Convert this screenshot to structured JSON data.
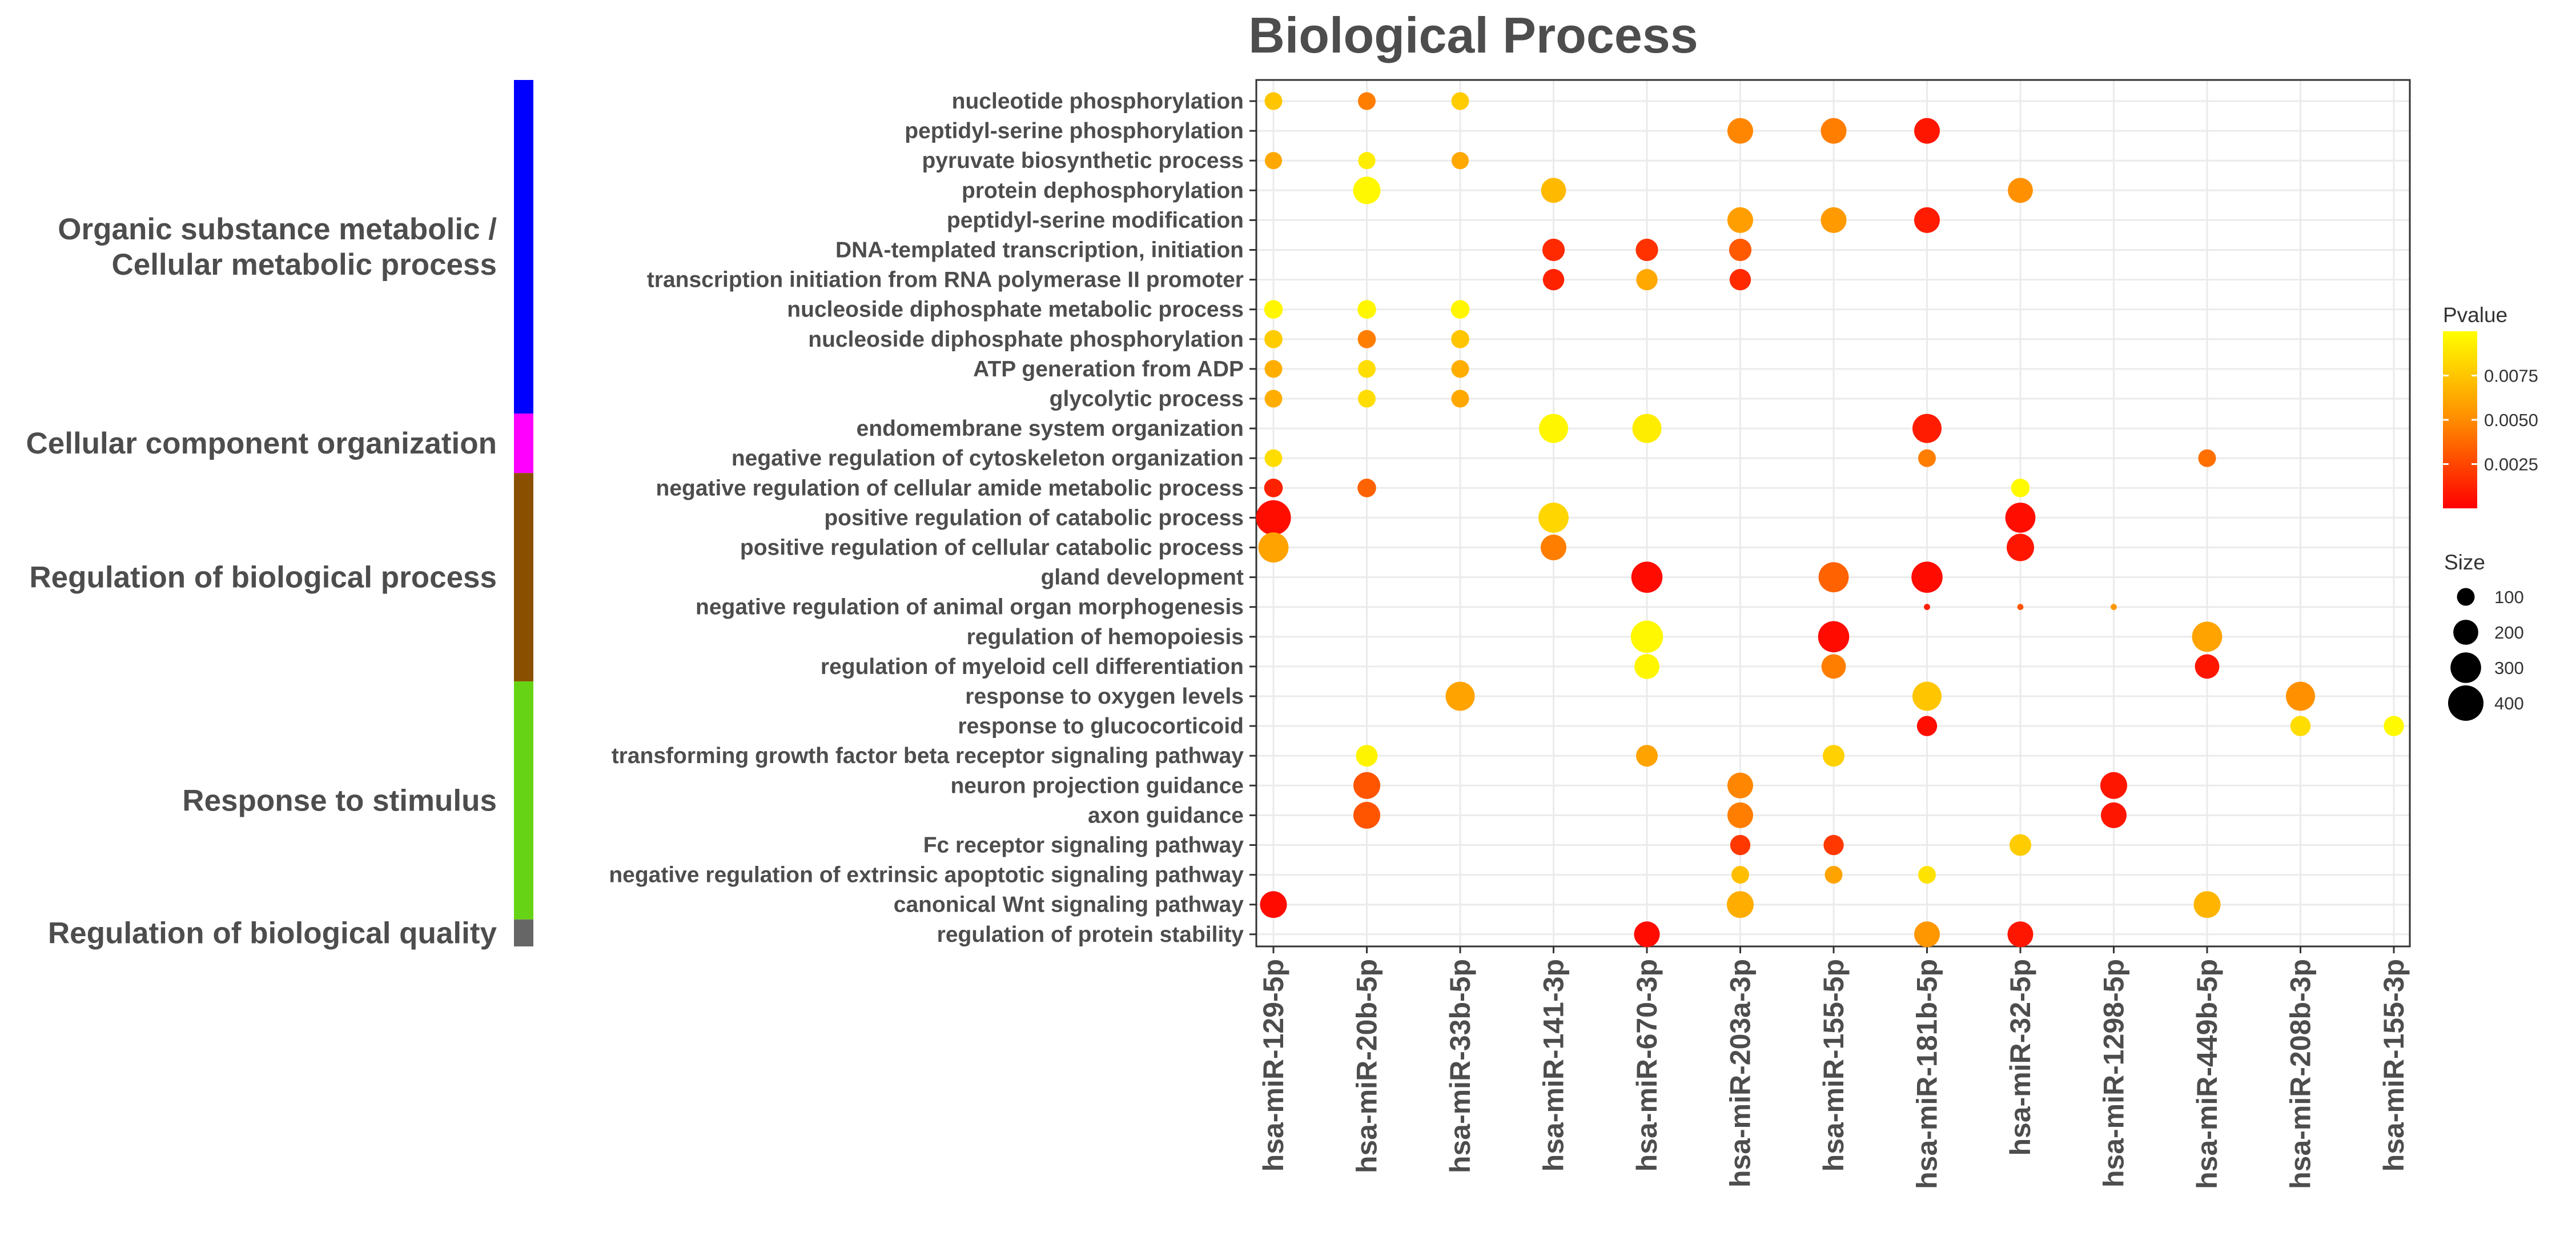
{
  "chart_data": {
    "type": "scatter",
    "subtype": "dot-plot",
    "title": "Biological Process",
    "xlabel": "",
    "ylabel": "",
    "x_categories": [
      "hsa-miR-129-5p",
      "hsa-miR-20b-5p",
      "hsa-miR-33b-5p",
      "hsa-miR-141-3p",
      "hsa-miR-670-3p",
      "hsa-miR-203a-3p",
      "hsa-miR-155-5p",
      "hsa-miR-181b-5p",
      "hsa-miR-32-5p",
      "hsa-miR-1298-5p",
      "hsa-miR-449b-5p",
      "hsa-miR-208b-3p",
      "hsa-miR-155-3p"
    ],
    "y_categories": [
      "nucleotide phosphorylation",
      "peptidyl-serine phosphorylation",
      "pyruvate biosynthetic process",
      "protein dephosphorylation",
      "peptidyl-serine modification",
      "DNA-templated transcription, initiation",
      "transcription initiation from RNA polymerase II promoter",
      "nucleoside diphosphate metabolic process",
      "nucleoside diphosphate phosphorylation",
      "ATP generation from ADP",
      "glycolytic process",
      "endomembrane system organization",
      "negative regulation of cytoskeleton organization",
      "negative regulation of cellular amide metabolic process",
      "positive regulation of catabolic process",
      "positive regulation of cellular catabolic process",
      "gland development",
      "negative regulation of animal organ morphogenesis",
      "regulation of hemopoiesis",
      "regulation of myeloid cell differentiation",
      "response to oxygen levels",
      "response to glucocorticoid",
      "transforming growth factor beta receptor signaling pathway",
      "neuron projection guidance",
      "axon guidance",
      "Fc receptor signaling pathway",
      "negative regulation of extrinsic apoptotic signaling pathway",
      "canonical Wnt signaling pathway",
      "regulation of protein stability"
    ],
    "points": [
      {
        "y": "nucleotide phosphorylation",
        "x": "hsa-miR-129-5p",
        "size": 100,
        "pvalue": 0.0075
      },
      {
        "y": "nucleotide phosphorylation",
        "x": "hsa-miR-20b-5p",
        "size": 100,
        "pvalue": 0.0045
      },
      {
        "y": "nucleotide phosphorylation",
        "x": "hsa-miR-33b-5p",
        "size": 100,
        "pvalue": 0.0078
      },
      {
        "y": "peptidyl-serine phosphorylation",
        "x": "hsa-miR-203a-3p",
        "size": 210,
        "pvalue": 0.0048
      },
      {
        "y": "peptidyl-serine phosphorylation",
        "x": "hsa-miR-155-5p",
        "size": 210,
        "pvalue": 0.0045
      },
      {
        "y": "peptidyl-serine phosphorylation",
        "x": "hsa-miR-181b-5p",
        "size": 210,
        "pvalue": 0.0008
      },
      {
        "y": "pyruvate biosynthetic process",
        "x": "hsa-miR-129-5p",
        "size": 95,
        "pvalue": 0.0062
      },
      {
        "y": "pyruvate biosynthetic process",
        "x": "hsa-miR-20b-5p",
        "size": 95,
        "pvalue": 0.0092
      },
      {
        "y": "pyruvate biosynthetic process",
        "x": "hsa-miR-33b-5p",
        "size": 95,
        "pvalue": 0.0062
      },
      {
        "y": "protein dephosphorylation",
        "x": "hsa-miR-20b-5p",
        "size": 240,
        "pvalue": 0.0097
      },
      {
        "y": "protein dephosphorylation",
        "x": "hsa-miR-141-3p",
        "size": 200,
        "pvalue": 0.007
      },
      {
        "y": "protein dephosphorylation",
        "x": "hsa-miR-32-5p",
        "size": 200,
        "pvalue": 0.0052
      },
      {
        "y": "peptidyl-serine modification",
        "x": "hsa-miR-203a-3p",
        "size": 210,
        "pvalue": 0.0058
      },
      {
        "y": "peptidyl-serine modification",
        "x": "hsa-miR-155-5p",
        "size": 210,
        "pvalue": 0.0056
      },
      {
        "y": "peptidyl-serine modification",
        "x": "hsa-miR-181b-5p",
        "size": 210,
        "pvalue": 0.001
      },
      {
        "y": "DNA-templated transcription, initiation",
        "x": "hsa-miR-141-3p",
        "size": 160,
        "pvalue": 0.0015
      },
      {
        "y": "DNA-templated transcription, initiation",
        "x": "hsa-miR-670-3p",
        "size": 160,
        "pvalue": 0.0018
      },
      {
        "y": "DNA-templated transcription, initiation",
        "x": "hsa-miR-203a-3p",
        "size": 160,
        "pvalue": 0.0032
      },
      {
        "y": "transcription initiation from RNA polymerase II promoter",
        "x": "hsa-miR-141-3p",
        "size": 145,
        "pvalue": 0.0012
      },
      {
        "y": "transcription initiation from RNA polymerase II promoter",
        "x": "hsa-miR-670-3p",
        "size": 145,
        "pvalue": 0.0062
      },
      {
        "y": "transcription initiation from RNA polymerase II promoter",
        "x": "hsa-miR-203a-3p",
        "size": 145,
        "pvalue": 0.0015
      },
      {
        "y": "nucleoside diphosphate metabolic process",
        "x": "hsa-miR-129-5p",
        "size": 110,
        "pvalue": 0.0096
      },
      {
        "y": "nucleoside diphosphate metabolic process",
        "x": "hsa-miR-20b-5p",
        "size": 110,
        "pvalue": 0.0096
      },
      {
        "y": "nucleoside diphosphate metabolic process",
        "x": "hsa-miR-33b-5p",
        "size": 110,
        "pvalue": 0.0096
      },
      {
        "y": "nucleoside diphosphate phosphorylation",
        "x": "hsa-miR-129-5p",
        "size": 105,
        "pvalue": 0.0078
      },
      {
        "y": "nucleoside diphosphate phosphorylation",
        "x": "hsa-miR-20b-5p",
        "size": 105,
        "pvalue": 0.0045
      },
      {
        "y": "nucleoside diphosphate phosphorylation",
        "x": "hsa-miR-33b-5p",
        "size": 105,
        "pvalue": 0.0075
      },
      {
        "y": "ATP generation from ADP",
        "x": "hsa-miR-129-5p",
        "size": 100,
        "pvalue": 0.0065
      },
      {
        "y": "ATP generation from ADP",
        "x": "hsa-miR-20b-5p",
        "size": 100,
        "pvalue": 0.0085
      },
      {
        "y": "ATP generation from ADP",
        "x": "hsa-miR-33b-5p",
        "size": 100,
        "pvalue": 0.0065
      },
      {
        "y": "glycolytic process",
        "x": "hsa-miR-129-5p",
        "size": 100,
        "pvalue": 0.0065
      },
      {
        "y": "glycolytic process",
        "x": "hsa-miR-20b-5p",
        "size": 100,
        "pvalue": 0.0085
      },
      {
        "y": "glycolytic process",
        "x": "hsa-miR-33b-5p",
        "size": 100,
        "pvalue": 0.0062
      },
      {
        "y": "endomembrane system organization",
        "x": "hsa-miR-141-3p",
        "size": 270,
        "pvalue": 0.0096
      },
      {
        "y": "endomembrane system organization",
        "x": "hsa-miR-670-3p",
        "size": 270,
        "pvalue": 0.0092
      },
      {
        "y": "endomembrane system organization",
        "x": "hsa-miR-181b-5p",
        "size": 270,
        "pvalue": 0.001
      },
      {
        "y": "negative regulation of cytoskeleton organization",
        "x": "hsa-miR-129-5p",
        "size": 100,
        "pvalue": 0.0085
      },
      {
        "y": "negative regulation of cytoskeleton organization",
        "x": "hsa-miR-181b-5p",
        "size": 100,
        "pvalue": 0.0045
      },
      {
        "y": "negative regulation of cytoskeleton organization",
        "x": "hsa-miR-449b-5p",
        "size": 100,
        "pvalue": 0.004
      },
      {
        "y": "negative regulation of cellular amide metabolic process",
        "x": "hsa-miR-129-5p",
        "size": 110,
        "pvalue": 0.0012
      },
      {
        "y": "negative regulation of cellular amide metabolic process",
        "x": "hsa-miR-20b-5p",
        "size": 110,
        "pvalue": 0.0035
      },
      {
        "y": "negative regulation of cellular amide metabolic process",
        "x": "hsa-miR-32-5p",
        "size": 110,
        "pvalue": 0.0098
      },
      {
        "y": "positive regulation of catabolic process",
        "x": "hsa-miR-129-5p",
        "size": 390,
        "pvalue": 0.0005
      },
      {
        "y": "positive regulation of catabolic process",
        "x": "hsa-miR-141-3p",
        "size": 290,
        "pvalue": 0.0082
      },
      {
        "y": "positive regulation of catabolic process",
        "x": "hsa-miR-32-5p",
        "size": 290,
        "pvalue": 0.0005
      },
      {
        "y": "positive regulation of cellular catabolic process",
        "x": "hsa-miR-129-5p",
        "size": 290,
        "pvalue": 0.006
      },
      {
        "y": "positive regulation of cellular catabolic process",
        "x": "hsa-miR-141-3p",
        "size": 210,
        "pvalue": 0.0045
      },
      {
        "y": "positive regulation of cellular catabolic process",
        "x": "hsa-miR-32-5p",
        "size": 240,
        "pvalue": 0.0008
      },
      {
        "y": "gland development",
        "x": "hsa-miR-670-3p",
        "size": 310,
        "pvalue": 0.0004
      },
      {
        "y": "gland development",
        "x": "hsa-miR-155-5p",
        "size": 290,
        "pvalue": 0.0035
      },
      {
        "y": "gland development",
        "x": "hsa-miR-181b-5p",
        "size": 310,
        "pvalue": 0.0004
      },
      {
        "y": "negative regulation of animal organ morphogenesis",
        "x": "hsa-miR-181b-5p",
        "size": 12,
        "pvalue": 0.001
      },
      {
        "y": "negative regulation of animal organ morphogenesis",
        "x": "hsa-miR-32-5p",
        "size": 12,
        "pvalue": 0.003
      },
      {
        "y": "negative regulation of animal organ morphogenesis",
        "x": "hsa-miR-1298-5p",
        "size": 12,
        "pvalue": 0.0055
      },
      {
        "y": "regulation of hemopoiesis",
        "x": "hsa-miR-670-3p",
        "size": 330,
        "pvalue": 0.0097
      },
      {
        "y": "regulation of hemopoiesis",
        "x": "hsa-miR-155-5p",
        "size": 310,
        "pvalue": 0.0004
      },
      {
        "y": "regulation of hemopoiesis",
        "x": "hsa-miR-449b-5p",
        "size": 290,
        "pvalue": 0.006
      },
      {
        "y": "regulation of myeloid cell differentiation",
        "x": "hsa-miR-670-3p",
        "size": 200,
        "pvalue": 0.0096
      },
      {
        "y": "regulation of myeloid cell differentiation",
        "x": "hsa-miR-155-5p",
        "size": 190,
        "pvalue": 0.0045
      },
      {
        "y": "regulation of myeloid cell differentiation",
        "x": "hsa-miR-449b-5p",
        "size": 190,
        "pvalue": 0.0008
      },
      {
        "y": "response to oxygen levels",
        "x": "hsa-miR-33b-5p",
        "size": 270,
        "pvalue": 0.006
      },
      {
        "y": "response to oxygen levels",
        "x": "hsa-miR-181b-5p",
        "size": 270,
        "pvalue": 0.0075
      },
      {
        "y": "response to oxygen levels",
        "x": "hsa-miR-208b-3p",
        "size": 270,
        "pvalue": 0.0052
      },
      {
        "y": "response to glucocorticoid",
        "x": "hsa-miR-181b-5p",
        "size": 130,
        "pvalue": 0.0005
      },
      {
        "y": "response to glucocorticoid",
        "x": "hsa-miR-208b-3p",
        "size": 130,
        "pvalue": 0.0085
      },
      {
        "y": "response to glucocorticoid",
        "x": "hsa-miR-155-3p",
        "size": 130,
        "pvalue": 0.0098
      },
      {
        "y": "transforming growth factor beta receptor signaling pathway",
        "x": "hsa-miR-20b-5p",
        "size": 150,
        "pvalue": 0.0095
      },
      {
        "y": "transforming growth factor beta receptor signaling pathway",
        "x": "hsa-miR-670-3p",
        "size": 150,
        "pvalue": 0.006
      },
      {
        "y": "transforming growth factor beta receptor signaling pathway",
        "x": "hsa-miR-155-5p",
        "size": 150,
        "pvalue": 0.008
      },
      {
        "y": "neuron projection guidance",
        "x": "hsa-miR-20b-5p",
        "size": 230,
        "pvalue": 0.003
      },
      {
        "y": "neuron projection guidance",
        "x": "hsa-miR-203a-3p",
        "size": 210,
        "pvalue": 0.0048
      },
      {
        "y": "neuron projection guidance",
        "x": "hsa-miR-1298-5p",
        "size": 230,
        "pvalue": 0.0008
      },
      {
        "y": "axon guidance",
        "x": "hsa-miR-20b-5p",
        "size": 230,
        "pvalue": 0.003
      },
      {
        "y": "axon guidance",
        "x": "hsa-miR-203a-3p",
        "size": 210,
        "pvalue": 0.0045
      },
      {
        "y": "axon guidance",
        "x": "hsa-miR-1298-5p",
        "size": 210,
        "pvalue": 0.0008
      },
      {
        "y": "Fc receptor signaling pathway",
        "x": "hsa-miR-203a-3p",
        "size": 130,
        "pvalue": 0.002
      },
      {
        "y": "Fc receptor signaling pathway",
        "x": "hsa-miR-155-5p",
        "size": 130,
        "pvalue": 0.002
      },
      {
        "y": "Fc receptor signaling pathway",
        "x": "hsa-miR-32-5p",
        "size": 150,
        "pvalue": 0.0078
      },
      {
        "y": "negative regulation of extrinsic apoptotic signaling pathway",
        "x": "hsa-miR-203a-3p",
        "size": 100,
        "pvalue": 0.0072
      },
      {
        "y": "negative regulation of extrinsic apoptotic signaling pathway",
        "x": "hsa-miR-155-5p",
        "size": 100,
        "pvalue": 0.006
      },
      {
        "y": "negative regulation of extrinsic apoptotic signaling pathway",
        "x": "hsa-miR-181b-5p",
        "size": 100,
        "pvalue": 0.0088
      },
      {
        "y": "canonical Wnt signaling pathway",
        "x": "hsa-miR-129-5p",
        "size": 230,
        "pvalue": 0.0004
      },
      {
        "y": "canonical Wnt signaling pathway",
        "x": "hsa-miR-203a-3p",
        "size": 230,
        "pvalue": 0.0065
      },
      {
        "y": "canonical Wnt signaling pathway",
        "x": "hsa-miR-449b-5p",
        "size": 230,
        "pvalue": 0.0068
      },
      {
        "y": "regulation of protein stability",
        "x": "hsa-miR-670-3p",
        "size": 210,
        "pvalue": 0.0004
      },
      {
        "y": "regulation of protein stability",
        "x": "hsa-miR-181b-5p",
        "size": 210,
        "pvalue": 0.0055
      },
      {
        "y": "regulation of protein stability",
        "x": "hsa-miR-32-5p",
        "size": 210,
        "pvalue": 0.0008
      }
    ],
    "color_scale": {
      "title": "Pvalue",
      "min": 0.0,
      "max": 0.01,
      "low_color": "#ff0000",
      "mid_color": "#ff8c00",
      "high_color": "#ffff00",
      "ticks": [
        0.0025,
        0.005,
        0.0075
      ],
      "tick_labels": [
        "0.0025",
        "0.0050",
        "0.0075"
      ]
    },
    "size_scale": {
      "title": "Size",
      "max": 400,
      "values": [
        100,
        200,
        300,
        400
      ],
      "labels": [
        "100",
        "200",
        "300",
        "400"
      ]
    },
    "groups": [
      {
        "label": "Organic substance metabolic /\nCellular metabolic process",
        "lines": [
          "Organic substance metabolic /",
          "Cellular metabolic process"
        ],
        "first": 0,
        "last": 10,
        "color": "#0000ff"
      },
      {
        "label": "Cellular component organization",
        "lines": [
          "Cellular component organization"
        ],
        "first": 11,
        "last": 12,
        "color": "#ff00ff"
      },
      {
        "label": "Regulation of biological process",
        "lines": [
          "Regulation of biological process"
        ],
        "first": 13,
        "last": 19,
        "color": "#8b4f00"
      },
      {
        "label": "Response to stimulus",
        "lines": [
          "Response to stimulus"
        ],
        "first": 20,
        "last": 27,
        "color": "#66d414"
      },
      {
        "label": "Regulation of biological quality",
        "lines": [
          "Regulation of biological quality"
        ],
        "first": 28,
        "last": 28,
        "color": "#666666"
      }
    ],
    "grid": true,
    "legend_position": "right"
  }
}
